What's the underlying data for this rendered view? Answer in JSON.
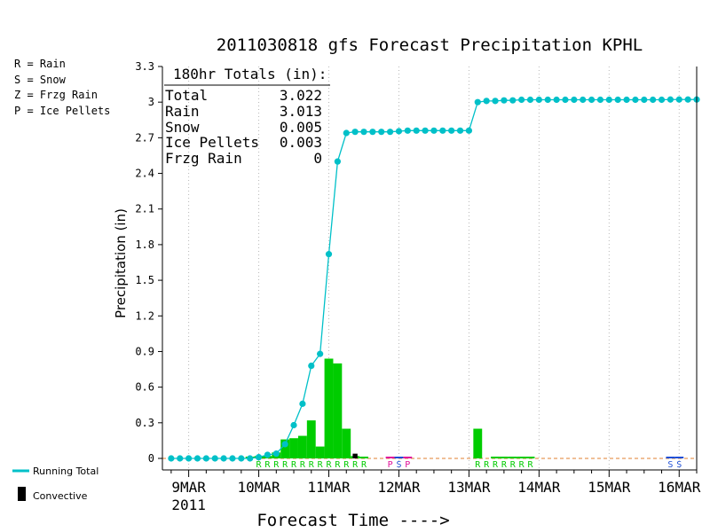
{
  "chart_data": {
    "type": "bar+line",
    "title": "2011030818 gfs Forecast Precipitation KPHL",
    "xlabel": "Forecast Time ---->",
    "ylabel": "Precipitation (in)",
    "ylim": [
      -0.05,
      3.3
    ],
    "yticks": [
      "0",
      "0.3",
      "0.6",
      "0.9",
      "1.2",
      "1.5",
      "1.8",
      "2.1",
      "2.4",
      "2.7",
      "3",
      "3.3"
    ],
    "xticks": [
      {
        "label": "9MAR",
        "sub": "2011",
        "hour": 6
      },
      {
        "label": "10MAR",
        "sub": "",
        "hour": 30
      },
      {
        "label": "11MAR",
        "sub": "",
        "hour": 54
      },
      {
        "label": "12MAR",
        "sub": "",
        "hour": 78
      },
      {
        "label": "13MAR",
        "sub": "",
        "hour": 102
      },
      {
        "label": "14MAR",
        "sub": "",
        "hour": 126
      },
      {
        "label": "15MAR",
        "sub": "",
        "hour": 150
      },
      {
        "label": "16MAR",
        "sub": "",
        "hour": 174
      }
    ],
    "xrange_hours": [
      -3,
      180
    ],
    "legend": {
      "types": [
        {
          "text": "R = Rain",
          "color": "#00cc00"
        },
        {
          "text": "S = Snow",
          "color": "#1f4fd6"
        },
        {
          "text": "Z = Frzg Rain",
          "color": "#f08c00"
        },
        {
          "text": "P = Ice Pellets",
          "color": "#e0109a"
        }
      ],
      "running_total": "Running Total",
      "convective": "Convective"
    },
    "totals": {
      "header": "180hr Totals (in):",
      "rows": [
        {
          "label": "Total",
          "value": "3.022"
        },
        {
          "label": "Rain",
          "value": "3.013"
        },
        {
          "label": "Snow",
          "value": "0.005"
        },
        {
          "label": "Ice Pellets",
          "value": "0.003"
        },
        {
          "label": "Frzg Rain",
          "value": "0"
        }
      ]
    },
    "bars": [
      {
        "hour": 27,
        "value": 0.01,
        "type": "R"
      },
      {
        "hour": 30,
        "value": 0.02,
        "type": "R"
      },
      {
        "hour": 33,
        "value": 0.02,
        "type": "R"
      },
      {
        "hour": 36,
        "value": 0.05,
        "type": "R"
      },
      {
        "hour": 39,
        "value": 0.16,
        "type": "R"
      },
      {
        "hour": 42,
        "value": 0.17,
        "type": "R"
      },
      {
        "hour": 45,
        "value": 0.19,
        "type": "R"
      },
      {
        "hour": 48,
        "value": 0.32,
        "type": "R"
      },
      {
        "hour": 51,
        "value": 0.1,
        "type": "R"
      },
      {
        "hour": 54,
        "value": 0.84,
        "type": "R"
      },
      {
        "hour": 57,
        "value": 0.8,
        "type": "R"
      },
      {
        "hour": 60,
        "value": 0.25,
        "type": "R"
      },
      {
        "hour": 63,
        "value": 0.02,
        "type": "R"
      },
      {
        "hour": 66,
        "value": 0.005,
        "type": "R"
      },
      {
        "hour": 75,
        "value": 0.002,
        "type": "P"
      },
      {
        "hour": 78,
        "value": 0.005,
        "type": "S"
      },
      {
        "hour": 81,
        "value": 0.001,
        "type": "P"
      },
      {
        "hour": 105,
        "value": 0.25,
        "type": "R"
      },
      {
        "hour": 111,
        "value": 0.015,
        "type": "R"
      },
      {
        "hour": 114,
        "value": 0.01,
        "type": "R"
      },
      {
        "hour": 117,
        "value": 0.005,
        "type": "R"
      },
      {
        "hour": 120,
        "value": 0.005,
        "type": "R"
      },
      {
        "hour": 123,
        "value": 0.003,
        "type": "R"
      },
      {
        "hour": 171,
        "value": 0.003,
        "type": "S"
      },
      {
        "hour": 174,
        "value": 0.002,
        "type": "S"
      }
    ],
    "convective_bars": [
      {
        "hour": 63,
        "value": 0.04
      }
    ],
    "type_labels": [
      {
        "hour": 30,
        "text": "R"
      },
      {
        "hour": 33,
        "text": "R"
      },
      {
        "hour": 36,
        "text": "R"
      },
      {
        "hour": 39,
        "text": "R"
      },
      {
        "hour": 42,
        "text": "R"
      },
      {
        "hour": 45,
        "text": "R"
      },
      {
        "hour": 48,
        "text": "R"
      },
      {
        "hour": 51,
        "text": "R"
      },
      {
        "hour": 54,
        "text": "R"
      },
      {
        "hour": 57,
        "text": "R"
      },
      {
        "hour": 60,
        "text": "R"
      },
      {
        "hour": 63,
        "text": "R"
      },
      {
        "hour": 66,
        "text": "R"
      },
      {
        "hour": 75,
        "text": "P"
      },
      {
        "hour": 78,
        "text": "S"
      },
      {
        "hour": 81,
        "text": "P"
      },
      {
        "hour": 105,
        "text": "R"
      },
      {
        "hour": 108,
        "text": "R"
      },
      {
        "hour": 111,
        "text": "R"
      },
      {
        "hour": 114,
        "text": "R"
      },
      {
        "hour": 117,
        "text": "R"
      },
      {
        "hour": 120,
        "text": "R"
      },
      {
        "hour": 123,
        "text": "R"
      },
      {
        "hour": 171,
        "text": "S"
      },
      {
        "hour": 174,
        "text": "S"
      }
    ],
    "running_total": {
      "hours": [
        0,
        3,
        6,
        9,
        12,
        15,
        18,
        21,
        24,
        27,
        30,
        33,
        36,
        39,
        42,
        45,
        48,
        51,
        54,
        57,
        60,
        63,
        66,
        69,
        72,
        75,
        78,
        81,
        84,
        87,
        90,
        93,
        96,
        99,
        102,
        105,
        108,
        111,
        114,
        117,
        120,
        123,
        126,
        129,
        132,
        135,
        138,
        141,
        144,
        147,
        150,
        153,
        156,
        159,
        162,
        165,
        168,
        171,
        174,
        177,
        180
      ],
      "values": [
        0,
        0,
        0,
        0,
        0,
        0,
        0,
        0,
        0,
        0,
        0.01,
        0.03,
        0.04,
        0.12,
        0.28,
        0.46,
        0.78,
        0.88,
        1.72,
        2.5,
        2.74,
        2.75,
        2.75,
        2.75,
        2.75,
        2.75,
        2.755,
        2.76,
        2.76,
        2.76,
        2.76,
        2.76,
        2.76,
        2.76,
        2.76,
        3.0,
        3.01,
        3.01,
        3.015,
        3.015,
        3.02,
        3.02,
        3.02,
        3.02,
        3.02,
        3.02,
        3.02,
        3.02,
        3.02,
        3.02,
        3.02,
        3.02,
        3.02,
        3.02,
        3.02,
        3.02,
        3.02,
        3.022,
        3.022,
        3.022,
        3.022
      ]
    },
    "colors": {
      "rain": "#00cc00",
      "snow": "#1f4fd6",
      "frzg": "#f08c00",
      "pellets": "#e0109a",
      "line": "#00c0c8",
      "convective": "#000000",
      "zero_line": "#e08030"
    }
  }
}
